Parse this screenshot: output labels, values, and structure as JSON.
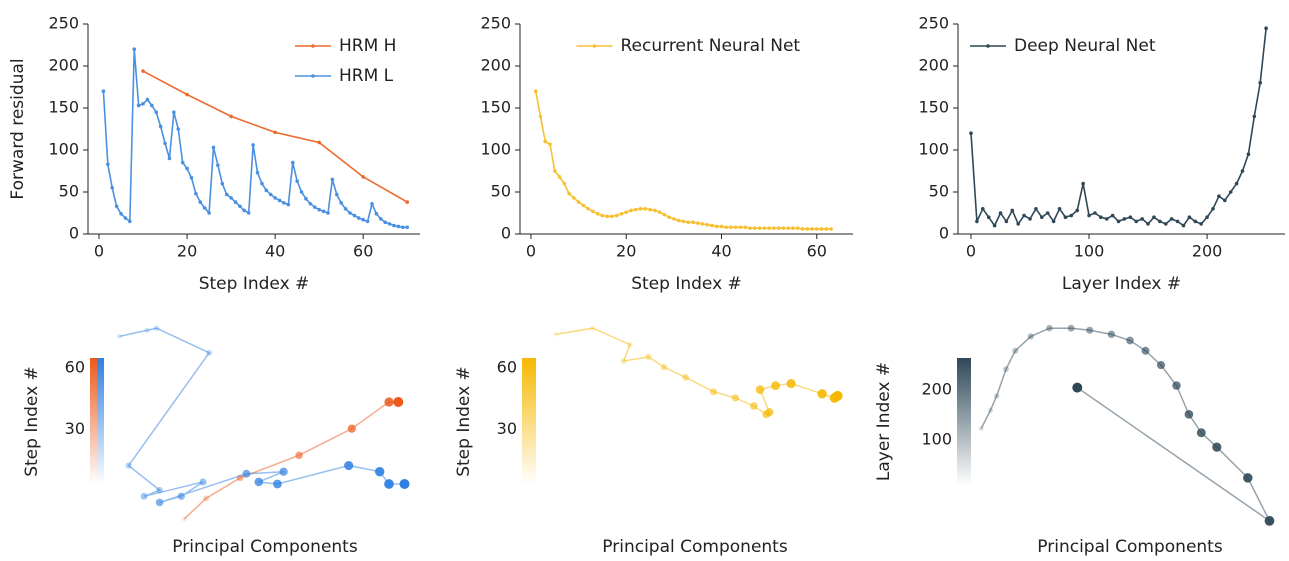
{
  "chart_data": [
    {
      "type": "line",
      "xlabel": "Step Index #",
      "ylabel": "Forward residual",
      "xlim": [
        -2.5,
        72.9
      ],
      "ylim": [
        0,
        250
      ],
      "xticks": [
        0,
        20,
        40,
        60
      ],
      "yticks": [
        0,
        50,
        100,
        150,
        200,
        250
      ],
      "legend": "upper right",
      "series": [
        {
          "name": "HRM H",
          "color": "#ec6a2c",
          "x": [
            10,
            20,
            30,
            40,
            50,
            60,
            70
          ],
          "values": [
            194,
            166,
            140,
            121,
            109,
            68,
            38
          ]
        },
        {
          "name": "HRM L",
          "color": "#4a90e2",
          "x": [
            1,
            2,
            3,
            4,
            5,
            6,
            7,
            8,
            9,
            10,
            11,
            12,
            13,
            14,
            15,
            16,
            17,
            18,
            19,
            20,
            21,
            22,
            23,
            24,
            25,
            26,
            27,
            28,
            29,
            30,
            31,
            32,
            33,
            34,
            35,
            36,
            37,
            38,
            39,
            40,
            41,
            42,
            43,
            44,
            45,
            46,
            47,
            48,
            49,
            50,
            51,
            52,
            53,
            54,
            55,
            56,
            57,
            58,
            59,
            60,
            61,
            62,
            63,
            64,
            65,
            66,
            67,
            68,
            69,
            70
          ],
          "values": [
            170,
            83,
            55,
            33,
            24,
            19,
            15,
            220,
            153,
            155,
            160,
            153,
            145,
            128,
            108,
            90,
            145,
            125,
            85,
            78,
            67,
            48,
            38,
            31,
            25,
            103,
            82,
            60,
            47,
            43,
            38,
            33,
            28,
            25,
            106,
            73,
            60,
            52,
            47,
            43,
            40,
            37,
            35,
            85,
            63,
            50,
            42,
            36,
            32,
            29,
            27,
            25,
            65,
            47,
            37,
            30,
            25,
            22,
            19,
            17,
            15,
            36,
            24,
            18,
            14,
            12,
            10,
            9,
            8,
            8
          ]
        }
      ]
    },
    {
      "type": "line",
      "xlabel": "Step Index #",
      "xlim": [
        -2.3,
        67.6
      ],
      "ylim": [
        0,
        250
      ],
      "xticks": [
        0,
        20,
        40,
        60
      ],
      "yticks": [
        0,
        50,
        100,
        150,
        200,
        250
      ],
      "legend": "upper center",
      "series": [
        {
          "name": "Recurrent Neural Net",
          "color": "#f5c032",
          "x": [
            1,
            2,
            3,
            4,
            5,
            6,
            7,
            8,
            9,
            10,
            11,
            12,
            13,
            14,
            15,
            16,
            17,
            18,
            19,
            20,
            21,
            22,
            23,
            24,
            25,
            26,
            27,
            28,
            29,
            30,
            31,
            32,
            33,
            34,
            35,
            36,
            37,
            38,
            39,
            40,
            41,
            42,
            43,
            44,
            45,
            46,
            47,
            48,
            49,
            50,
            51,
            52,
            53,
            54,
            55,
            56,
            57,
            58,
            59,
            60,
            61,
            62,
            63
          ],
          "values": [
            170,
            140,
            110,
            107,
            75,
            68,
            60,
            48,
            43,
            38,
            34,
            30,
            27,
            24,
            22,
            21,
            21,
            22,
            24,
            26,
            28,
            29,
            30,
            30,
            29,
            28,
            26,
            23,
            20,
            18,
            16,
            15,
            14,
            14,
            13,
            12,
            11,
            10,
            9,
            9,
            8,
            8,
            8,
            8,
            8,
            7,
            7,
            7,
            7,
            7,
            7,
            7,
            7,
            7,
            7,
            7,
            6,
            6,
            6,
            6,
            6,
            6,
            6
          ]
        }
      ]
    },
    {
      "type": "line",
      "xlabel": "Layer Index #",
      "xlim": [
        -11,
        266
      ],
      "ylim": [
        0,
        250
      ],
      "xticks": [
        0,
        100,
        200
      ],
      "yticks": [
        0,
        50,
        100,
        150,
        200,
        250
      ],
      "legend": "upper left",
      "series": [
        {
          "name": "Deep Neural Net",
          "color": "#2f4858",
          "x": [
            0,
            5,
            10,
            15,
            20,
            25,
            30,
            35,
            40,
            45,
            50,
            55,
            60,
            65,
            70,
            75,
            80,
            85,
            90,
            95,
            100,
            105,
            110,
            115,
            120,
            125,
            130,
            135,
            140,
            145,
            150,
            155,
            160,
            165,
            170,
            175,
            180,
            185,
            190,
            195,
            200,
            205,
            210,
            215,
            220,
            225,
            230,
            235,
            240,
            245,
            250
          ],
          "values": [
            120,
            15,
            30,
            20,
            10,
            25,
            15,
            28,
            12,
            22,
            18,
            30,
            20,
            25,
            15,
            30,
            20,
            22,
            28,
            60,
            22,
            25,
            20,
            18,
            22,
            15,
            18,
            20,
            15,
            18,
            12,
            20,
            15,
            12,
            18,
            15,
            10,
            20,
            15,
            12,
            20,
            30,
            45,
            40,
            50,
            60,
            75,
            95,
            140,
            180,
            245
          ]
        }
      ]
    },
    {
      "type": "scatter",
      "xlabel": "Principal Components",
      "xlim": [
        0,
        100
      ],
      "ylim": [
        0,
        100
      ],
      "colorbar": {
        "label": "Step Index #",
        "lim": [
          3,
          65
        ],
        "ticks": [
          30,
          60
        ]
      },
      "series": [
        {
          "color": "#ec5a1c",
          "x": [
            24,
            31,
            42,
            61,
            78,
            90,
            93
          ],
          "values": [
            3,
            13,
            23,
            34,
            47,
            60,
            60
          ]
        },
        {
          "color": "#2f7fe0",
          "x": [
            3,
            12,
            15,
            32,
            6,
            16,
            11,
            30,
            23,
            16,
            44,
            56,
            48,
            54,
            77,
            87,
            90,
            95
          ],
          "values": [
            92,
            95,
            96,
            84,
            29,
            17,
            14,
            21,
            14,
            11,
            25,
            26,
            21,
            20,
            29,
            26,
            20,
            20
          ]
        }
      ]
    },
    {
      "type": "scatter",
      "xlabel": "Principal Components",
      "xlim": [
        0,
        100
      ],
      "ylim": [
        0,
        100
      ],
      "colorbar": {
        "label": "Step Index #",
        "lim": [
          3,
          65
        ],
        "ticks": [
          30,
          60
        ]
      },
      "series": [
        {
          "color": "#f5b800",
          "x": [
            5,
            17,
            29,
            27,
            35,
            40,
            47,
            56,
            63,
            69,
            73,
            74,
            71,
            76,
            81,
            91,
            95,
            96
          ],
          "values": [
            93,
            96,
            88,
            80,
            82,
            77,
            72,
            65,
            62,
            58,
            54,
            55,
            66,
            68,
            69,
            64,
            62,
            63
          ]
        }
      ]
    },
    {
      "type": "scatter",
      "xlabel": "Principal Components",
      "xlim": [
        0,
        100
      ],
      "ylim": [
        0,
        100
      ],
      "colorbar": {
        "label": "Layer Index #",
        "lim": [
          10,
          264
        ],
        "ticks": [
          100,
          200
        ]
      },
      "series": [
        {
          "color": "#2f4858",
          "x": [
            2,
            5,
            7,
            10,
            13,
            18,
            24,
            31,
            37,
            44,
            50,
            55,
            60,
            65,
            69,
            73,
            78,
            88,
            95,
            33
          ],
          "values": [
            47,
            56,
            63,
            76,
            85,
            92,
            96,
            96,
            95,
            93,
            90,
            85,
            78,
            68,
            54,
            45,
            38,
            23,
            2,
            67
          ]
        }
      ]
    }
  ]
}
